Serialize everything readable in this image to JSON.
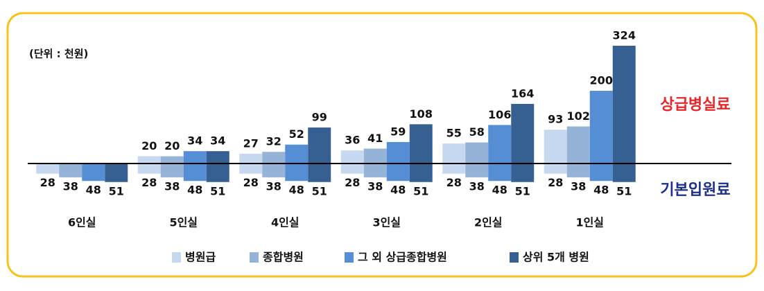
{
  "chart_data": {
    "type": "bar",
    "note": "(단위 : 천원)",
    "annotations": [
      {
        "text": "상급병실료",
        "color": "#e8262a"
      },
      {
        "text": "기본입원료",
        "color": "#1c2f8a"
      }
    ],
    "categories": [
      "6인실",
      "5인실",
      "4인실",
      "3인실",
      "2인실",
      "1인실"
    ],
    "series": [
      {
        "name": "병원급",
        "color": "#c6d9f1",
        "values": [
          null,
          20,
          27,
          36,
          55,
          93
        ],
        "base_values": [
          28,
          28,
          28,
          28,
          28,
          28
        ]
      },
      {
        "name": "종합병원",
        "color": "#95b3d7",
        "values": [
          null,
          20,
          32,
          41,
          58,
          102
        ],
        "base_values": [
          38,
          38,
          38,
          38,
          38,
          38
        ]
      },
      {
        "name": "그 외 상급종합병원",
        "color": "#558ed5",
        "values": [
          null,
          34,
          52,
          59,
          106,
          200
        ],
        "base_values": [
          48,
          48,
          48,
          48,
          48,
          48
        ]
      },
      {
        "name": "상위 5개 병원",
        "color": "#376092",
        "values": [
          null,
          34,
          99,
          108,
          164,
          324
        ],
        "base_values": [
          51,
          51,
          51,
          51,
          51,
          51
        ]
      }
    ]
  }
}
